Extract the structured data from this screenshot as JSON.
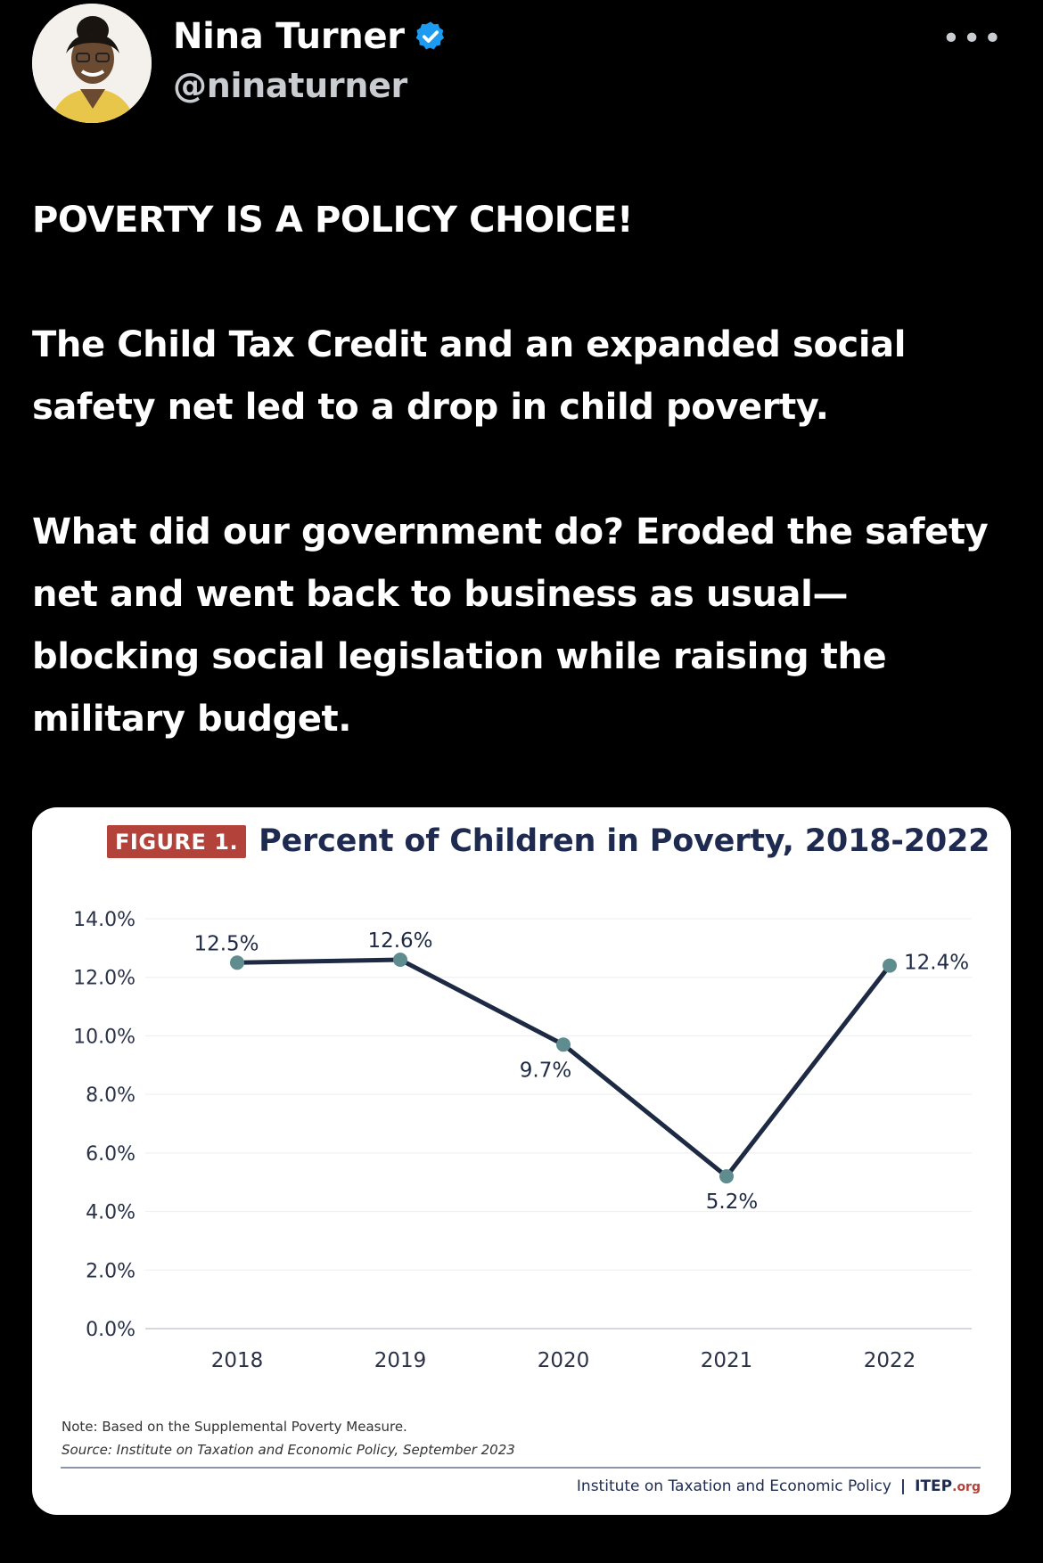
{
  "author": {
    "name": "Nina Turner",
    "handle": "@ninaturner",
    "more_label": "•••"
  },
  "tweet": {
    "paragraphs": [
      "POVERTY IS A POLICY CHOICE!",
      "The Child Tax Credit and an expanded social safety net led to a drop in child poverty.",
      "What did our government do? Eroded the safety net and went back to business as usual—blocking social legislation while raising the military budget."
    ]
  },
  "figure": {
    "badge": "FIGURE 1.",
    "title": "Percent of Children in Poverty, 2018-2022",
    "note": "Note: Based on the Supplemental Poverty Measure.",
    "source": "Source: Institute on Taxation and Economic Policy, September 2023",
    "footer_org": "Institute on Taxation and Economic Policy",
    "footer_sep": "|",
    "footer_itep": "ITEP",
    "footer_dotorg": ".org"
  },
  "colors": {
    "line": "#1e2a44",
    "point": "#5f8c8e",
    "badge": "#b3433a",
    "verified": "#1d9bf0"
  },
  "chart_data": {
    "type": "line",
    "categories": [
      "2018",
      "2019",
      "2020",
      "2021",
      "2022"
    ],
    "values": [
      12.5,
      12.6,
      9.7,
      5.2,
      12.4
    ],
    "data_labels": [
      "12.5%",
      "12.6%",
      "9.7%",
      "5.2%",
      "12.4%"
    ],
    "ylim": [
      0,
      14
    ],
    "yticks": [
      "0.0%",
      "2.0%",
      "4.0%",
      "6.0%",
      "8.0%",
      "10.0%",
      "12.0%",
      "14.0%"
    ],
    "grid": true
  }
}
